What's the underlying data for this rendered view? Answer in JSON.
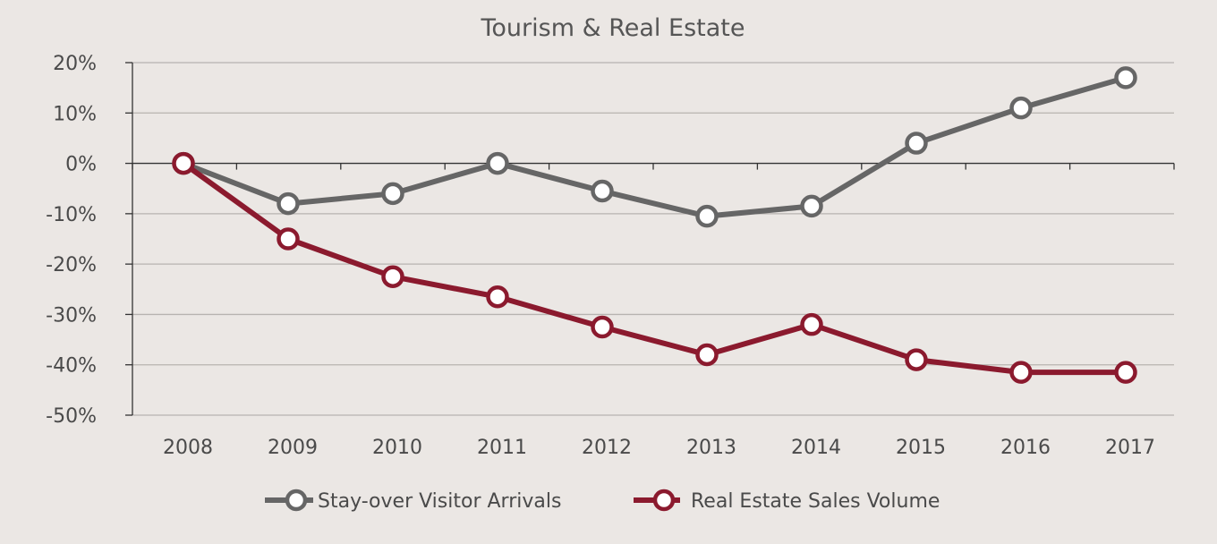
{
  "chart_data": {
    "type": "line",
    "title": "Tourism & Real Estate",
    "x": [
      "2008",
      "2009",
      "2010",
      "2011",
      "2012",
      "2013",
      "2014",
      "2015",
      "2016",
      "2017"
    ],
    "ylim": [
      -50,
      20
    ],
    "yticks": [
      20,
      10,
      0,
      -10,
      -20,
      -30,
      -40,
      -50
    ],
    "ytick_labels": [
      "20%",
      "10%",
      "0%",
      "-10%",
      "-20%",
      "-30%",
      "-40%",
      "-50%"
    ],
    "grid": true,
    "legend_position": "bottom",
    "series": [
      {
        "name": "Stay-over Visitor Arrivals",
        "color": "#666666",
        "values": [
          0,
          -8,
          -6,
          0,
          -5.5,
          -10.5,
          -8.5,
          4,
          11,
          17
        ]
      },
      {
        "name": "Real Estate Sales Volume",
        "color": "#8b1a2e",
        "values": [
          0,
          -15,
          -22.5,
          -26.5,
          -32.5,
          -38,
          -32,
          -39,
          -41.5,
          -41.5
        ]
      }
    ]
  }
}
